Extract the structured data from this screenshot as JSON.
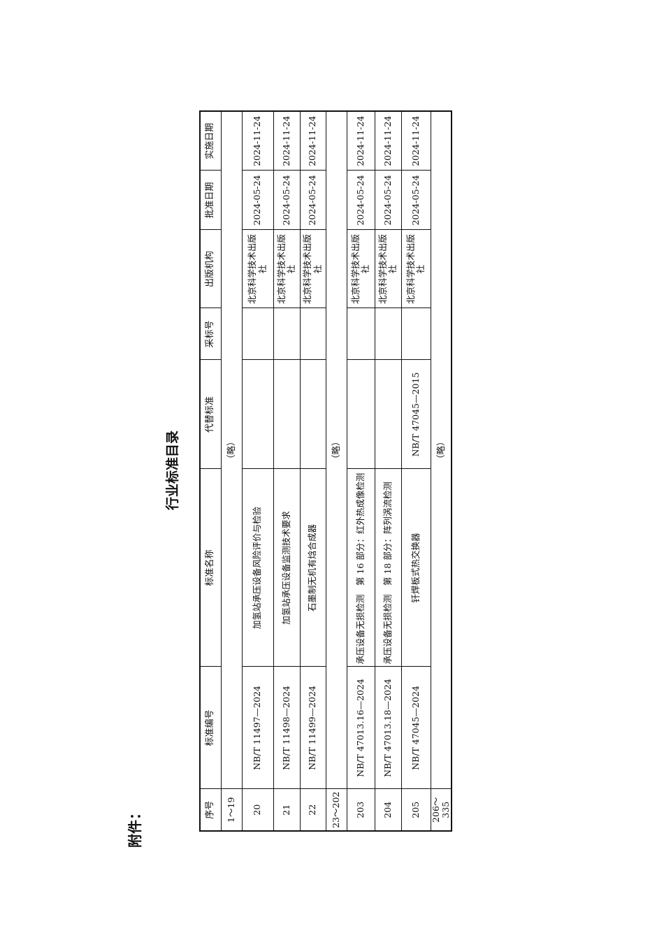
{
  "attachment_label": "附件：",
  "title": "行业标准目录",
  "table": {
    "headers": [
      "序号",
      "标准编号",
      "标准名称",
      "代替标准",
      "采标号",
      "出版机构",
      "批准日期",
      "实施日期"
    ],
    "rows": [
      {
        "type": "summary",
        "seq": "1～19",
        "note": "（略）"
      },
      {
        "type": "item",
        "seq": "20",
        "code": "NB/T 11497—2024",
        "name": "加氢站承压设备风险评价与检验",
        "replaces": "",
        "adopted": "",
        "publisher": "北京科学技术出版社",
        "approved": "2024-05-24",
        "effective": "2024-11-24"
      },
      {
        "type": "item",
        "seq": "21",
        "code": "NB/T 11498—2024",
        "name": "加氢站承压设备监测技术要求",
        "replaces": "",
        "adopted": "",
        "publisher": "北京科学技术出版社",
        "approved": "2024-05-24",
        "effective": "2024-11-24"
      },
      {
        "type": "item",
        "seq": "22",
        "code": "NB/T 11499—2024",
        "name": "石墨制无机有焓合成器",
        "replaces": "",
        "adopted": "",
        "publisher": "北京科学技术出版社",
        "approved": "2024-05-24",
        "effective": "2024-11-24"
      },
      {
        "type": "summary",
        "seq": "23～202",
        "note": "（略）"
      },
      {
        "type": "item",
        "seq": "203",
        "code": "NB/T 47013.16—2024",
        "name": "承压设备无损检测　第 16 部分：红外热成像检测",
        "replaces": "",
        "adopted": "",
        "publisher": "北京科学技术出版社",
        "approved": "2024-05-24",
        "effective": "2024-11-24"
      },
      {
        "type": "item",
        "seq": "204",
        "code": "NB/T 47013.18—2024",
        "name": "承压设备无损检测　第 18 部分：阵列涡流检测",
        "replaces": "",
        "adopted": "",
        "publisher": "北京科学技术出版社",
        "approved": "2024-05-24",
        "effective": "2024-11-24"
      },
      {
        "type": "item",
        "seq": "205",
        "code": "NB/T 47045—2024",
        "name": "钎焊板式热交换器",
        "replaces": "NB/T 47045—2015",
        "adopted": "",
        "publisher": "北京科学技术出版社",
        "approved": "2024-05-24",
        "effective": "2024-11-24"
      },
      {
        "type": "summary",
        "seq": "206～335",
        "note": "（略）"
      }
    ]
  }
}
